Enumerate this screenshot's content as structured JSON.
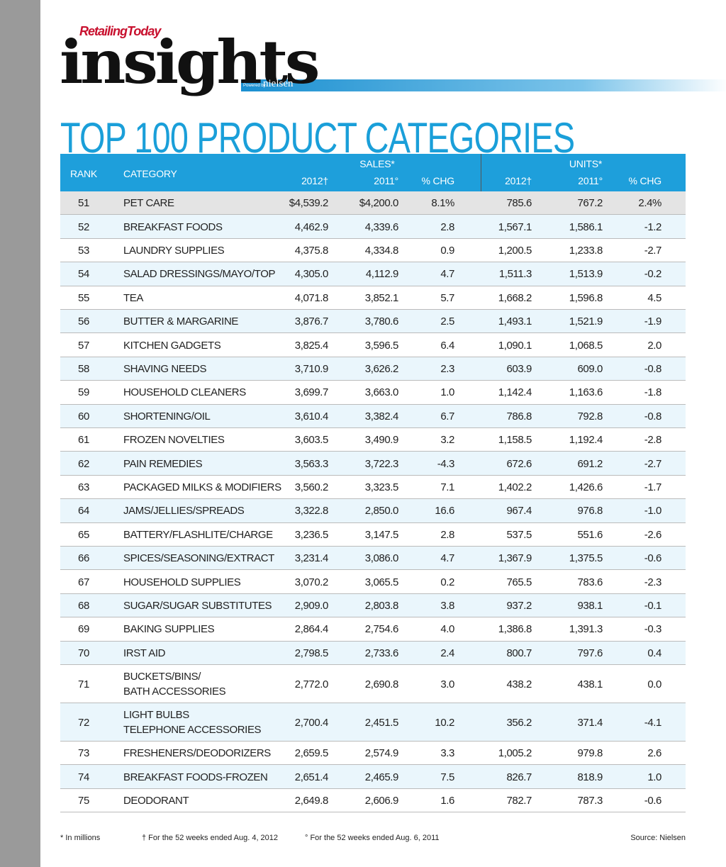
{
  "header": {
    "brand": "RetailingToday",
    "logo": "insights",
    "powered_by": "Powered by",
    "partner": "nielsen"
  },
  "title": "TOP 100 PRODUCT CATEGORIES",
  "table": {
    "columns": {
      "rank": "RANK",
      "category": "CATEGORY",
      "sales": "SALES*",
      "units": "UNITS*",
      "sales_2012": "2012†",
      "sales_2011": "2011°",
      "sales_chg": "% CHG",
      "units_2012": "2012†",
      "units_2011": "2011°",
      "units_chg": "% CHG"
    },
    "rows": [
      [
        "51",
        "PET CARE",
        "$4,539.2",
        "$4,200.0",
        "8.1%",
        "785.6",
        "767.2",
        "2.4%"
      ],
      [
        "52",
        "BREAKFAST FOODS",
        "4,462.9",
        "4,339.6",
        "2.8",
        "1,567.1",
        "1,586.1",
        "-1.2"
      ],
      [
        "53",
        "LAUNDRY SUPPLIES",
        "4,375.8",
        "4,334.8",
        "0.9",
        "1,200.5",
        "1,233.8",
        "-2.7"
      ],
      [
        "54",
        "SALAD DRESSINGS/MAYO/TOP",
        "4,305.0",
        "4,112.9",
        "4.7",
        "1,511.3",
        "1,513.9",
        "-0.2"
      ],
      [
        "55",
        "TEA",
        "4,071.8",
        "3,852.1",
        "5.7",
        "1,668.2",
        "1,596.8",
        "4.5"
      ],
      [
        "56",
        "BUTTER & MARGARINE",
        "3,876.7",
        "3,780.6",
        "2.5",
        "1,493.1",
        "1,521.9",
        "-1.9"
      ],
      [
        "57",
        "KITCHEN GADGETS",
        "3,825.4",
        "3,596.5",
        "6.4",
        "1,090.1",
        "1,068.5",
        "2.0"
      ],
      [
        "58",
        "SHAVING NEEDS",
        "3,710.9",
        "3,626.2",
        "2.3",
        "603.9",
        "609.0",
        "-0.8"
      ],
      [
        "59",
        "HOUSEHOLD CLEANERS",
        "3,699.7",
        "3,663.0",
        "1.0",
        "1,142.4",
        "1,163.6",
        "-1.8"
      ],
      [
        "60",
        "SHORTENING/OIL",
        "3,610.4",
        "3,382.4",
        "6.7",
        "786.8",
        "792.8",
        "-0.8"
      ],
      [
        "61",
        "FROZEN NOVELTIES",
        "3,603.5",
        "3,490.9",
        "3.2",
        "1,158.5",
        "1,192.4",
        "-2.8"
      ],
      [
        "62",
        "PAIN REMEDIES",
        "3,563.3",
        "3,722.3",
        "-4.3",
        "672.6",
        "691.2",
        "-2.7"
      ],
      [
        "63",
        "PACKAGED MILKS & MODIFIERS",
        "3,560.2",
        "3,323.5",
        "7.1",
        "1,402.2",
        "1,426.6",
        "-1.7"
      ],
      [
        "64",
        "JAMS/JELLIES/SPREADS",
        "3,322.8",
        "2,850.0",
        "16.6",
        "967.4",
        "976.8",
        "-1.0"
      ],
      [
        "65",
        "BATTERY/FLASHLITE/CHARGE",
        "3,236.5",
        "3,147.5",
        "2.8",
        "537.5",
        "551.6",
        "-2.6"
      ],
      [
        "66",
        "SPICES/SEASONING/EXTRACT",
        "3,231.4",
        "3,086.0",
        "4.7",
        "1,367.9",
        "1,375.5",
        "-0.6"
      ],
      [
        "67",
        "HOUSEHOLD SUPPLIES",
        "3,070.2",
        "3,065.5",
        "0.2",
        "765.5",
        "783.6",
        "-2.3"
      ],
      [
        "68",
        "SUGAR/SUGAR SUBSTITUTES",
        "2,909.0",
        "2,803.8",
        "3.8",
        "937.2",
        "938.1",
        "-0.1"
      ],
      [
        "69",
        "BAKING SUPPLIES",
        "2,864.4",
        "2,754.6",
        "4.0",
        "1,386.8",
        "1,391.3",
        "-0.3"
      ],
      [
        "70",
        "IRST AID",
        "2,798.5",
        "2,733.6",
        "2.4",
        "800.7",
        "797.6",
        "0.4"
      ],
      [
        "71",
        "BUCKETS/BINS/\nBATH ACCESSORIES",
        "2,772.0",
        "2,690.8",
        "3.0",
        "438.2",
        "438.1",
        "0.0"
      ],
      [
        "72",
        "LIGHT BULBS\nTELEPHONE ACCESSORIES",
        "2,700.4",
        "2,451.5",
        "10.2",
        "356.2",
        "371.4",
        "-4.1"
      ],
      [
        "73",
        "FRESHENERS/DEODORIZERS",
        "2,659.5",
        "2,574.9",
        "3.3",
        "1,005.2",
        "979.8",
        "2.6"
      ],
      [
        "74",
        "BREAKFAST FOODS-FROZEN",
        "2,651.4",
        "2,465.9",
        "7.5",
        "826.7",
        "818.9",
        "1.0"
      ],
      [
        "75",
        "DEODORANT",
        "2,649.8",
        "2,606.9",
        "1.6",
        "782.7",
        "787.3",
        "-0.6"
      ]
    ]
  },
  "footer": {
    "note_millions": "* In millions",
    "note_2012": "† For the 52 weeks ended Aug. 4, 2012",
    "note_2011": "° For the 52 weeks ended Aug. 6, 2011",
    "source": "Source: Nielsen"
  }
}
